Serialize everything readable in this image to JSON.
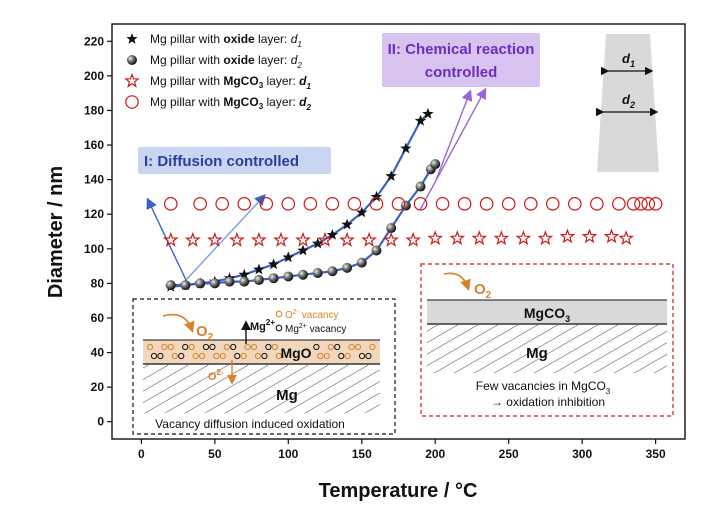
{
  "chart_data": {
    "type": "scatter",
    "xlabel": "Temperature / °C",
    "ylabel": "Diameter / nm",
    "xlim": [
      -20,
      370
    ],
    "ylim": [
      -10,
      230
    ],
    "x_ticks": [
      "0",
      "50",
      "100",
      "150",
      "200",
      "250",
      "300",
      "350"
    ],
    "y_ticks": [
      "0",
      "20",
      "40",
      "60",
      "80",
      "100",
      "120",
      "140",
      "160",
      "180",
      "200",
      "220"
    ],
    "x_tick_values": [
      0,
      50,
      100,
      150,
      200,
      250,
      300,
      350
    ],
    "y_tick_values": [
      0,
      20,
      40,
      60,
      80,
      100,
      120,
      140,
      160,
      180,
      200,
      220
    ],
    "legend_position": "top-left",
    "series": [
      {
        "key": "oxide_d1",
        "legend": {
          "prefix": "Mg pillar with ",
          "bold": "oxide",
          "mid": " layer: ",
          "var": "d",
          "sub": "1"
        },
        "marker": "star-filled",
        "color": "#111111",
        "points": [
          [
            20,
            78
          ],
          [
            30,
            79
          ],
          [
            40,
            80
          ],
          [
            50,
            81
          ],
          [
            60,
            83
          ],
          [
            70,
            85
          ],
          [
            80,
            88
          ],
          [
            90,
            91
          ],
          [
            100,
            95
          ],
          [
            110,
            99
          ],
          [
            120,
            103
          ],
          [
            130,
            108
          ],
          [
            140,
            114
          ],
          [
            150,
            121
          ],
          [
            160,
            130
          ],
          [
            170,
            142
          ],
          [
            180,
            158
          ],
          [
            190,
            174
          ],
          [
            195,
            178
          ]
        ]
      },
      {
        "key": "oxide_d2",
        "legend": {
          "prefix": "Mg pillar with ",
          "bold": "oxide",
          "mid": " layer: ",
          "var": "d",
          "sub": "2"
        },
        "marker": "sphere",
        "color": "#333333",
        "points": [
          [
            20,
            79
          ],
          [
            30,
            79
          ],
          [
            40,
            80
          ],
          [
            50,
            80
          ],
          [
            60,
            81
          ],
          [
            70,
            81
          ],
          [
            80,
            82
          ],
          [
            90,
            83
          ],
          [
            100,
            84
          ],
          [
            110,
            85
          ],
          [
            120,
            86
          ],
          [
            130,
            87
          ],
          [
            140,
            89
          ],
          [
            150,
            92
          ],
          [
            160,
            99
          ],
          [
            170,
            112
          ],
          [
            180,
            125
          ],
          [
            190,
            136
          ],
          [
            197,
            146
          ],
          [
            200,
            149
          ]
        ]
      },
      {
        "key": "mgco3_d1",
        "legend": {
          "prefix": "Mg pillar with ",
          "bold": "MgCO",
          "bold_sub": "3",
          "mid": " layer: ",
          "var": "d",
          "sub": "1"
        },
        "marker": "star-open",
        "color": "#cc1a1a",
        "points": [
          [
            20,
            105
          ],
          [
            35,
            105
          ],
          [
            50,
            105
          ],
          [
            65,
            105
          ],
          [
            80,
            105
          ],
          [
            95,
            105
          ],
          [
            110,
            105
          ],
          [
            125,
            105
          ],
          [
            140,
            105
          ],
          [
            155,
            105
          ],
          [
            170,
            105
          ],
          [
            185,
            105
          ],
          [
            200,
            106
          ],
          [
            215,
            106
          ],
          [
            230,
            106
          ],
          [
            245,
            106
          ],
          [
            260,
            106
          ],
          [
            275,
            106
          ],
          [
            290,
            107
          ],
          [
            305,
            107
          ],
          [
            320,
            107
          ],
          [
            330,
            106
          ]
        ]
      },
      {
        "key": "mgco3_d2",
        "legend": {
          "prefix": "Mg pillar with ",
          "bold": "MgCO",
          "bold_sub": "3",
          "mid": " layer: ",
          "var": "d",
          "sub": "2"
        },
        "marker": "circle-open",
        "color": "#cc1a1a",
        "points": [
          [
            20,
            126
          ],
          [
            40,
            126
          ],
          [
            55,
            126
          ],
          [
            70,
            126
          ],
          [
            85,
            126
          ],
          [
            100,
            126
          ],
          [
            115,
            126
          ],
          [
            130,
            126
          ],
          [
            145,
            126
          ],
          [
            160,
            126
          ],
          [
            175,
            126
          ],
          [
            190,
            126
          ],
          [
            205,
            126
          ],
          [
            220,
            126
          ],
          [
            235,
            126
          ],
          [
            250,
            126
          ],
          [
            265,
            126
          ],
          [
            280,
            126
          ],
          [
            295,
            126
          ],
          [
            310,
            126
          ],
          [
            325,
            126
          ],
          [
            335,
            126
          ],
          [
            340,
            126
          ],
          [
            345,
            126
          ],
          [
            350,
            126
          ]
        ]
      }
    ],
    "annotations": {
      "diffusion": "I: Diffusion controlled",
      "reaction_line1": "II: Chemical reaction",
      "reaction_line2": "controlled",
      "pillar_d1_var": "d",
      "pillar_d1_sub": "1",
      "pillar_d2_var": "d",
      "pillar_d2_sub": "2"
    },
    "inset_oxide": {
      "o2": "O",
      "o2_sub": "2",
      "mg2_label": "Mg",
      "mg2_sup": "2+",
      "o_vac_label": "O",
      "o_vac_sup": "2-",
      "o_vac_word": "  vacancy",
      "mg_vac_label": "Mg",
      "mg_vac_sup": "2+",
      "mg_vac_word": " vacancy",
      "mgo": "MgO",
      "o2m": "O",
      "o2m_sup": "2-",
      "mg": "Mg",
      "caption": "Vacancy diffusion induced oxidation"
    },
    "inset_mgco3": {
      "o2": "O",
      "o2_sub": "2",
      "layer": "MgCO",
      "layer_sub": "3",
      "mg": "Mg",
      "note1": "Few vacancies in MgCO",
      "note1_sub": "3",
      "note2": "→ oxidation inhibition"
    },
    "colors": {
      "axis": "#111111",
      "red": "#cc1a1a",
      "orange": "#d9822b",
      "purple": "#9a67d6",
      "blue": "#3a62c4",
      "diffusion_bg": "#c9d6f2",
      "reaction_bg": "#d8c2f0"
    }
  }
}
